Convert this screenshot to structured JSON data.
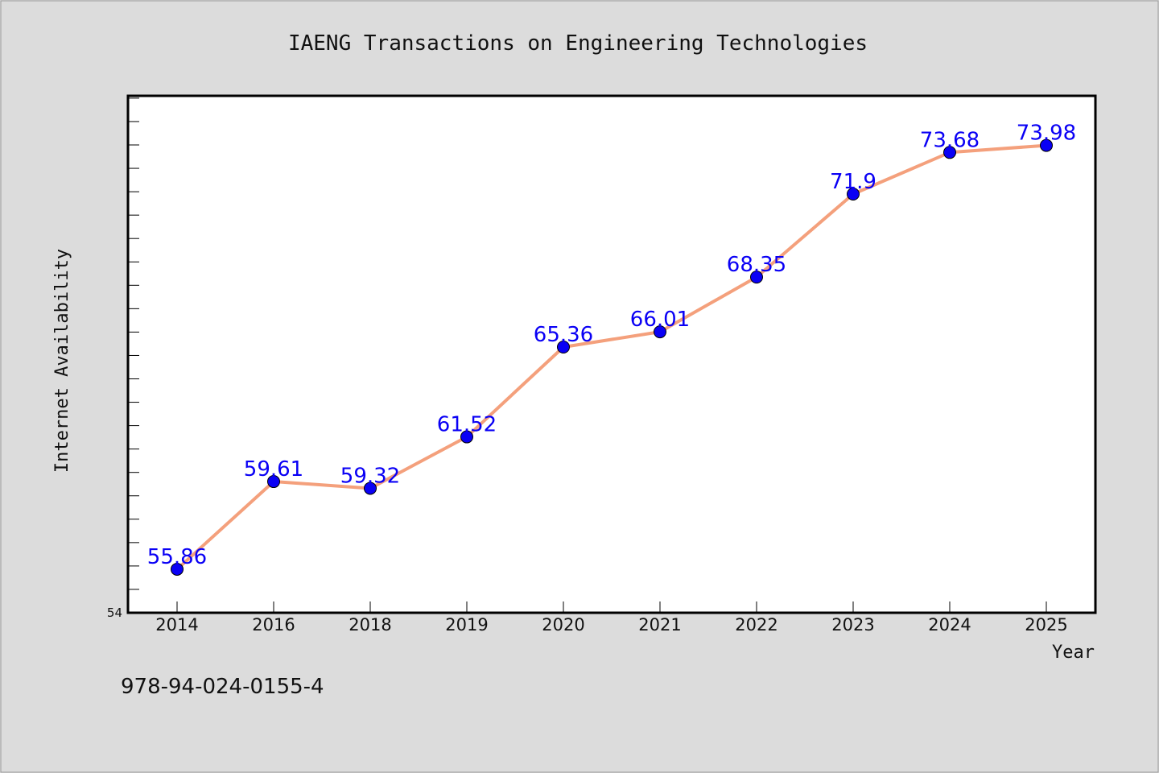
{
  "chart_data": {
    "type": "line",
    "title": "IAENG Transactions on Engineering Technologies",
    "xlabel": "Year",
    "ylabel": "Internet Availability",
    "categories": [
      "2014",
      "2016",
      "2018",
      "2019",
      "2020",
      "2021",
      "2022",
      "2023",
      "2024",
      "2025"
    ],
    "series": [
      {
        "values": [
          55.86,
          59.61,
          59.32,
          61.52,
          65.36,
          66.01,
          68.35,
          71.9,
          73.68,
          73.98
        ],
        "labels": [
          "55.86",
          "59.61",
          "59.32",
          "61.52",
          "65.36",
          "66.01",
          "68.35",
          "71.9",
          "73.68",
          "73.98"
        ]
      }
    ],
    "ylim": [
      54,
      76.1
    ],
    "yticks": [
      "54"
    ],
    "grid": false,
    "legend": "none",
    "line_color": "#f4a07c",
    "marker_color": "#0a00f5",
    "label_color": "#0a00f5"
  },
  "footer": {
    "isbn": "978-94-024-0155-4"
  }
}
